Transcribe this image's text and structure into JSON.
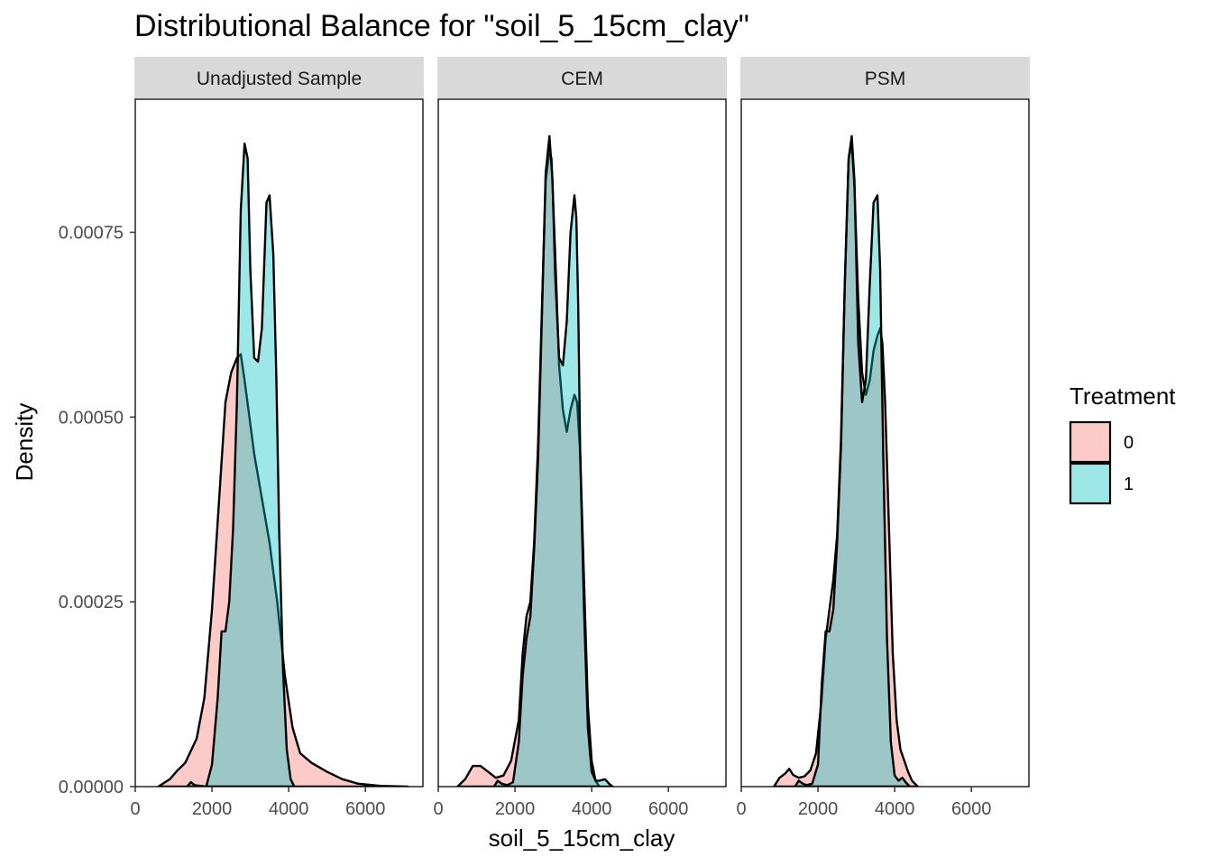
{
  "chart_data": {
    "type": "area",
    "title": "Distributional Balance for \"soil_5_15cm_clay\"",
    "xlabel": "soil_5_15cm_clay",
    "ylabel": "Density",
    "xlim": [
      0,
      7500
    ],
    "ylim": [
      0,
      0.00093
    ],
    "x_ticks": [
      "0",
      "2000",
      "4000",
      "6000"
    ],
    "x_tick_values": [
      0,
      2000,
      4000,
      6000
    ],
    "y_ticks": [
      "0.00000",
      "0.00025",
      "0.00050",
      "0.00075"
    ],
    "y_tick_values": [
      0,
      0.00025,
      0.0005,
      0.00075
    ],
    "grid": false,
    "legend": {
      "title": "Treatment",
      "placement": "right",
      "entries": [
        {
          "label": "0",
          "color": "#F8766D"
        },
        {
          "label": "1",
          "color": "#00BFC4"
        }
      ]
    },
    "panels": [
      {
        "name": "Unadjusted Sample",
        "series": [
          {
            "name": "0",
            "color": "#F8766D",
            "x": [
              600,
              900,
              1100,
              1300,
              1600,
              1800,
              2000,
              2200,
              2350,
              2500,
              2650,
              2750,
              2850,
              2950,
              3100,
              3300,
              3500,
              3700,
              3900,
              4100,
              4300,
              4600,
              5000,
              5400,
              5800,
              6400,
              7100
            ],
            "y": [
              0,
              1e-05,
              2.2e-05,
              3.2e-05,
              6.5e-05,
              0.00012,
              0.00024,
              0.0004,
              0.00052,
              0.00056,
              0.00058,
              0.000585,
              0.00055,
              0.00051,
              0.00045,
              0.00039,
              0.00033,
              0.00025,
              0.00015,
              8e-05,
              4.5e-05,
              3.2e-05,
              2e-05,
              1e-05,
              4e-06,
              1e-06,
              0
            ]
          },
          {
            "name": "1",
            "color": "#00BFC4",
            "x": [
              1350,
              1450,
              1550,
              1700,
              1850,
              2000,
              2150,
              2250,
              2350,
              2450,
              2550,
              2650,
              2750,
              2850,
              2930,
              3000,
              3100,
              3200,
              3300,
              3420,
              3500,
              3600,
              3680,
              3750,
              3850,
              3950,
              4050,
              4150
            ],
            "y": [
              0,
              6e-06,
              2e-06,
              1e-06,
              0,
              3e-05,
              0.00012,
              0.00021,
              0.00021,
              0.00025,
              0.00035,
              0.00052,
              0.00078,
              0.00087,
              0.00085,
              0.0007,
              0.00058,
              0.000575,
              0.00062,
              0.00079,
              0.0008,
              0.00072,
              0.00055,
              0.00035,
              0.00016,
              5e-05,
              1e-05,
              0
            ]
          }
        ]
      },
      {
        "name": "CEM",
        "series": [
          {
            "name": "0",
            "color": "#F8766D",
            "x": [
              500,
              700,
              900,
              1100,
              1300,
              1500,
              1700,
              1900,
              2100,
              2200,
              2300,
              2400,
              2500,
              2600,
              2700,
              2800,
              2900,
              2950,
              3050,
              3150,
              3250,
              3350,
              3450,
              3550,
              3620,
              3700,
              3800,
              3900,
              4000,
              4100,
              4200
            ],
            "y": [
              0,
              1e-05,
              2.8e-05,
              2.8e-05,
              2e-05,
              1.2e-05,
              1.5e-05,
              3.5e-05,
              9e-05,
              0.00018,
              0.00023,
              0.00025,
              0.00033,
              0.00046,
              0.00064,
              0.00082,
              0.00086,
              0.00085,
              0.00072,
              0.00057,
              0.00051,
              0.00048,
              0.00051,
              0.00053,
              0.00052,
              0.00045,
              0.00028,
              0.00011,
              3.5e-05,
              8e-06,
              0
            ]
          },
          {
            "name": "1",
            "color": "#00BFC4",
            "x": [
              1450,
              1550,
              1650,
              1800,
              1950,
              2100,
              2200,
              2300,
              2400,
              2500,
              2600,
              2700,
              2800,
              2900,
              2980,
              3050,
              3150,
              3250,
              3350,
              3450,
              3550,
              3600,
              3650,
              3700,
              3800,
              3900,
              4000,
              4100,
              4200,
              4350,
              4450,
              4550
            ],
            "y": [
              0,
              8e-06,
              4e-06,
              2e-06,
              6e-06,
              6e-05,
              0.00015,
              0.0002,
              0.00023,
              0.00032,
              0.00044,
              0.00063,
              0.00083,
              0.00088,
              0.00082,
              0.00069,
              0.00058,
              0.00057,
              0.00063,
              0.00075,
              0.0008,
              0.00077,
              0.00065,
              0.00045,
              0.00024,
              8e-05,
              2e-05,
              8e-06,
              8e-06,
              1e-05,
              4e-06,
              0
            ]
          }
        ]
      },
      {
        "name": "PSM",
        "series": [
          {
            "name": "0",
            "color": "#F8766D",
            "x": [
              850,
              1000,
              1150,
              1250,
              1350,
              1500,
              1650,
              1800,
              1950,
              2100,
              2200,
              2300,
              2400,
              2500,
              2600,
              2700,
              2800,
              2880,
              2950,
              3050,
              3150,
              3250,
              3350,
              3450,
              3550,
              3620,
              3680,
              3750,
              3850,
              3950,
              4050,
              4150,
              4250,
              4350,
              4450,
              4600
            ],
            "y": [
              0,
              1.2e-05,
              1.8e-05,
              2.4e-05,
              1.6e-05,
              1.2e-05,
              1.4e-05,
              2.2e-05,
              4.5e-05,
              0.00012,
              0.0002,
              0.00024,
              0.00028,
              0.00034,
              0.00047,
              0.00068,
              0.00085,
              0.00087,
              0.00081,
              0.00066,
              0.00056,
              0.00053,
              0.00055,
              0.00059,
              0.00061,
              0.00062,
              0.0006,
              0.00052,
              0.00035,
              0.00018,
              9e-05,
              5e-05,
              3.5e-05,
              2e-05,
              8e-06,
              0
            ]
          },
          {
            "name": "1",
            "color": "#00BFC4",
            "x": [
              1400,
              1500,
              1600,
              1700,
              1850,
              2000,
              2100,
              2200,
              2300,
              2400,
              2500,
              2600,
              2700,
              2800,
              2880,
              2950,
              3050,
              3150,
              3250,
              3350,
              3450,
              3550,
              3620,
              3700,
              3800,
              3900,
              4000,
              4100,
              4200,
              4300,
              4400
            ],
            "y": [
              0,
              8e-06,
              4e-06,
              2e-06,
              4e-06,
              3e-05,
              0.00014,
              0.00021,
              0.00021,
              0.00024,
              0.00033,
              0.00046,
              0.00068,
              0.00085,
              0.00088,
              0.00082,
              0.0006,
              0.00052,
              0.00055,
              0.00068,
              0.00079,
              0.0008,
              0.0007,
              0.00045,
              0.0002,
              6e-05,
              1.5e-05,
              8e-06,
              1.2e-05,
              5e-06,
              0
            ]
          }
        ]
      }
    ]
  }
}
